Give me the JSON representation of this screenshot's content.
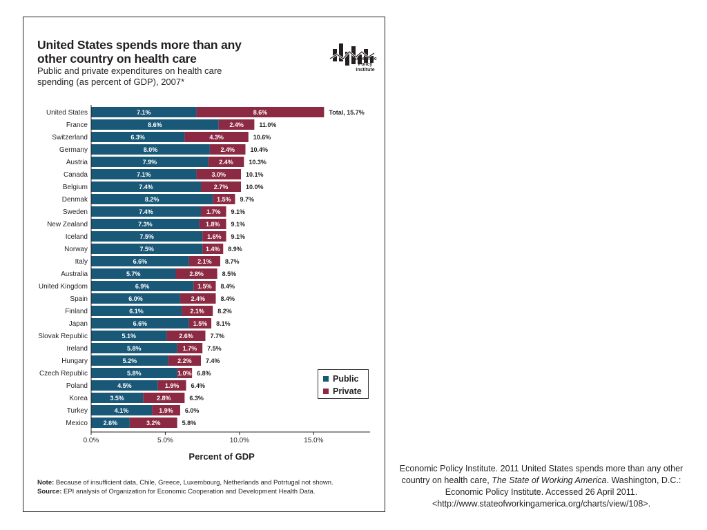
{
  "chart_data": {
    "type": "bar",
    "stacked": true,
    "orientation": "horizontal",
    "title": "United States spends more than any other country on health care",
    "subtitle": "Public and private expenditures on health care spending (as percent of GDP), 2007*",
    "xlabel": "Percent of GDP",
    "xlim": [
      0,
      18.8
    ],
    "xticks": [
      "0.0%",
      "5.0%",
      "10.0%",
      "15.0%"
    ],
    "xtick_values": [
      0,
      5,
      10,
      15
    ],
    "legend_position": "right",
    "categories": [
      "United States",
      "France",
      "Switzerland",
      "Germany",
      "Austria",
      "Canada",
      "Belgium",
      "Denmak",
      "Sweden",
      "New Zealand",
      "Iceland",
      "Norway",
      "Italy",
      "Australia",
      "United Kingdom",
      "Spain",
      "Finland",
      "Japan",
      "Slovak Republic",
      "Ireland",
      "Hungary",
      "Czech Republic",
      "Poland",
      "Korea",
      "Turkey",
      "Mexico"
    ],
    "series": [
      {
        "name": "Public",
        "color": "#1a5878",
        "values": [
          7.1,
          8.6,
          6.3,
          8.0,
          7.9,
          7.1,
          7.4,
          8.2,
          7.4,
          7.3,
          7.5,
          7.5,
          6.6,
          5.7,
          6.9,
          6.0,
          6.1,
          6.6,
          5.1,
          5.8,
          5.2,
          5.8,
          4.5,
          3.5,
          4.1,
          2.6
        ],
        "labels": [
          "7.1%",
          "8.6%",
          "6.3%",
          "8.0%",
          "7.9%",
          "7.1%",
          "7.4%",
          "8.2%",
          "7.4%",
          "7.3%",
          "7.5%",
          "7.5%",
          "6.6%",
          "5.7%",
          "6.9%",
          "6.0%",
          "6.1%",
          "6.6%",
          "5.1%",
          "5.8%",
          "5.2%",
          "5.8%",
          "4.5%",
          "3.5%",
          "4.1%",
          "2.6%"
        ]
      },
      {
        "name": "Private",
        "color": "#8b2a42",
        "values": [
          8.6,
          2.4,
          4.3,
          2.4,
          2.4,
          3.0,
          2.7,
          1.5,
          1.7,
          1.8,
          1.6,
          1.4,
          2.1,
          2.8,
          1.5,
          2.4,
          2.1,
          1.5,
          2.6,
          1.7,
          2.2,
          1.0,
          1.9,
          2.8,
          1.9,
          3.2
        ],
        "labels": [
          "8.6%",
          "2.4%",
          "4.3%",
          "2.4%",
          "2.4%",
          "3.0%",
          "2.7%",
          "1.5%",
          "1.7%",
          "1.8%",
          "1.6%",
          "1.4%",
          "2.1%",
          "2.8%",
          "1.5%",
          "2.4%",
          "2.1%",
          "1.5%",
          "2.6%",
          "1.7%",
          "2.2%",
          "1.0%",
          "1.9%",
          "2.8%",
          "1.9%",
          "3.2%"
        ]
      }
    ],
    "totals": [
      15.7,
      11.0,
      10.6,
      10.4,
      10.3,
      10.1,
      10.0,
      9.7,
      9.1,
      9.1,
      9.1,
      8.9,
      8.7,
      8.5,
      8.4,
      8.4,
      8.2,
      8.1,
      7.7,
      7.5,
      7.4,
      6.8,
      6.4,
      6.3,
      6.0,
      5.8
    ],
    "total_labels": [
      "Total, 15.7%",
      "11.0%",
      "10.6%",
      "10.4%",
      "10.3%",
      "10.1%",
      "10.0%",
      "9.7%",
      "9.1%",
      "9.1%",
      "9.1%",
      "8.9%",
      "8.7%",
      "8.5%",
      "8.4%",
      "8.4%",
      "8.2%",
      "8.1%",
      "7.7%",
      "7.5%",
      "7.4%",
      "6.8%",
      "6.4%",
      "6.3%",
      "6.0%",
      "5.8%"
    ]
  },
  "legend": {
    "public_label": "Public",
    "private_label": "Private",
    "public_color": "#1a5878",
    "private_color": "#8b2a42"
  },
  "logo": {
    "text": "Economic Policy Institute",
    "icon": "epi-logo-icon"
  },
  "notes": {
    "note_label": "Note:",
    "note_text": " Because of insufficient data, Chile, Greece, Luxembourg, Netherlands and Potrtugal not shown.",
    "source_label": "Source:",
    "source_text": " EPI analysis of Organization for Economic Cooperation and Development  Health Data."
  },
  "citation": {
    "part1": "Economic Policy Institute. 2011 United States spends more than any other country on health care, ",
    "italic": "The State of Working America",
    "part2": ". Washington, D.C.: Economic Policy Institute.  Accessed 26 April 2011. <http://www.stateofworkingamerica.org/charts/view/108>."
  }
}
